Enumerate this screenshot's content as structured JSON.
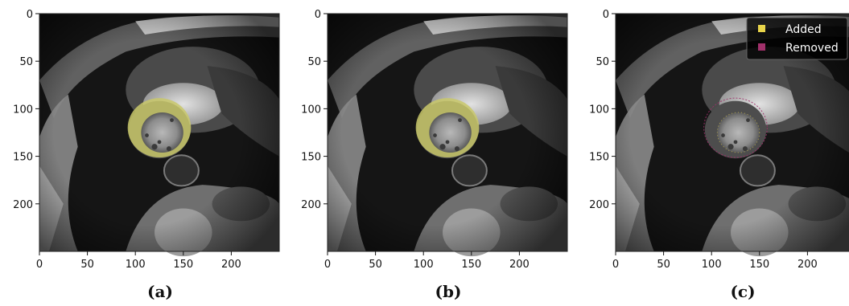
{
  "panels": [
    {
      "caption": "(a)",
      "overlay": "filled",
      "x_ticks": [
        "0",
        "50",
        "100",
        "150",
        "200"
      ],
      "y_ticks": [
        "0",
        "50",
        "100",
        "150",
        "200"
      ]
    },
    {
      "caption": "(b)",
      "overlay": "filled",
      "x_ticks": [
        "0",
        "50",
        "100",
        "150",
        "200"
      ],
      "y_ticks": [
        "0",
        "50",
        "100",
        "150",
        "200"
      ]
    },
    {
      "caption": "(c)",
      "overlay": "difference",
      "x_ticks": [
        "0",
        "50",
        "100",
        "150",
        "200"
      ],
      "y_ticks": [
        "0",
        "50",
        "100",
        "150",
        "200"
      ],
      "legend": {
        "items": [
          {
            "label": "Added",
            "color": "#e8d44a"
          },
          {
            "label": "Removed",
            "color": "#a0306a"
          }
        ]
      }
    }
  ],
  "colors": {
    "mask": "#c9c86a",
    "background": "#ffffff"
  }
}
